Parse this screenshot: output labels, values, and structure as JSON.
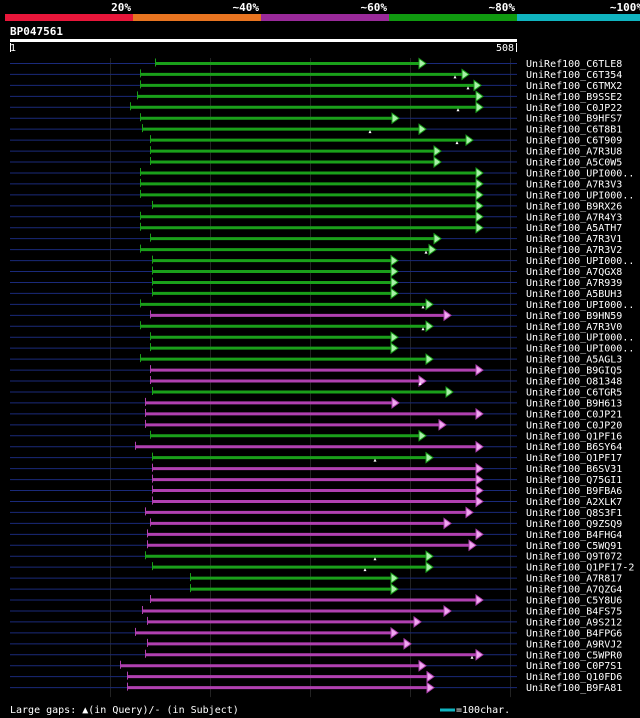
{
  "colors": {
    "background": "#000000",
    "scale_red": "#e8163a",
    "scale_orange": "#e87420",
    "scale_purple": "#9a2a9a",
    "scale_green": "#109a10",
    "scale_cyan": "#10b4c0",
    "hit_green": "#1aa01a",
    "hit_magenta": "#b040b0",
    "arrow_green": "#a8f0a8",
    "arrow_magenta": "#f0a8f0",
    "query_bar": "#ffffff",
    "baseline": "#1a2a7a",
    "grid": "#222222",
    "legend_line": "#10b4c0"
  },
  "scale_legend": [
    {
      "label": "20%",
      "color": "#e8163a"
    },
    {
      "label": "~40%",
      "color": "#e87420"
    },
    {
      "label": "~60%",
      "color": "#9a2a9a"
    },
    {
      "label": "~80%",
      "color": "#109a10"
    },
    {
      "label": "~100%",
      "color": "#10b4c0"
    }
  ],
  "query": {
    "id": "BP047561",
    "start": "1",
    "end": "508"
  },
  "hits": [
    {
      "name": "UniRef100_C6TLE8",
      "color": "green",
      "start": 155,
      "end": 425,
      "gap": null
    },
    {
      "name": "UniRef100_C6T354",
      "color": "green",
      "start": 140,
      "end": 468,
      "gap": 455
    },
    {
      "name": "UniRef100_C6TMX2",
      "color": "green",
      "start": 140,
      "end": 480,
      "gap": 468
    },
    {
      "name": "UniRef100_B9SSE2",
      "color": "green",
      "start": 137,
      "end": 482,
      "gap": null
    },
    {
      "name": "UniRef100_C0JP22",
      "color": "green",
      "start": 130,
      "end": 482,
      "gap": 458
    },
    {
      "name": "UniRef100_B9HFS7",
      "color": "green",
      "start": 140,
      "end": 398,
      "gap": null
    },
    {
      "name": "UniRef100_C6T8B1",
      "color": "green",
      "start": 142,
      "end": 425,
      "gap": 370
    },
    {
      "name": "UniRef100_C6T909",
      "color": "green",
      "start": 150,
      "end": 472,
      "gap": 457
    },
    {
      "name": "UniRef100_A7R3U8",
      "color": "green",
      "start": 150,
      "end": 440,
      "gap": null
    },
    {
      "name": "UniRef100_A5C0W5",
      "color": "green",
      "start": 150,
      "end": 440,
      "gap": null
    },
    {
      "name": "UniRef100_UPI000..",
      "color": "green",
      "start": 140,
      "end": 482,
      "gap": null
    },
    {
      "name": "UniRef100_A7R3V3",
      "color": "green",
      "start": 140,
      "end": 482,
      "gap": null
    },
    {
      "name": "UniRef100_UPI000..",
      "color": "green",
      "start": 140,
      "end": 482,
      "gap": null
    },
    {
      "name": "UniRef100_B9RX26",
      "color": "green",
      "start": 152,
      "end": 482,
      "gap": null
    },
    {
      "name": "UniRef100_A7R4Y3",
      "color": "green",
      "start": 140,
      "end": 482,
      "gap": null
    },
    {
      "name": "UniRef100_A5ATH7",
      "color": "green",
      "start": 140,
      "end": 482,
      "gap": null
    },
    {
      "name": "UniRef100_A7R3V1",
      "color": "green",
      "start": 150,
      "end": 440,
      "gap": null
    },
    {
      "name": "UniRef100_A7R3V2",
      "color": "green",
      "start": 140,
      "end": 435,
      "gap": 426
    },
    {
      "name": "UniRef100_UPI000..",
      "color": "green",
      "start": 152,
      "end": 397,
      "gap": null
    },
    {
      "name": "UniRef100_A7QGX8",
      "color": "green",
      "start": 152,
      "end": 397,
      "gap": null
    },
    {
      "name": "UniRef100_A7R939",
      "color": "green",
      "start": 152,
      "end": 397,
      "gap": null
    },
    {
      "name": "UniRef100_A5BUH3",
      "color": "green",
      "start": 152,
      "end": 397,
      "gap": null
    },
    {
      "name": "UniRef100_UPI000..",
      "color": "green",
      "start": 140,
      "end": 432,
      "gap": 423
    },
    {
      "name": "UniRef100_B9HN59",
      "color": "magenta",
      "start": 150,
      "end": 450,
      "gap": null
    },
    {
      "name": "UniRef100_A7R3V0",
      "color": "green",
      "start": 140,
      "end": 432,
      "gap": 423
    },
    {
      "name": "UniRef100_UPI000..",
      "color": "green",
      "start": 150,
      "end": 397,
      "gap": null
    },
    {
      "name": "UniRef100_UPI000..",
      "color": "green",
      "start": 150,
      "end": 397,
      "gap": null
    },
    {
      "name": "UniRef100_A5AGL3",
      "color": "green",
      "start": 140,
      "end": 432,
      "gap": null
    },
    {
      "name": "UniRef100_B9GIQ5",
      "color": "magenta",
      "start": 150,
      "end": 482,
      "gap": null
    },
    {
      "name": "UniRef100_O81348",
      "color": "magenta",
      "start": 150,
      "end": 425,
      "gap": 420
    },
    {
      "name": "UniRef100_C6TGR5",
      "color": "green",
      "start": 152,
      "end": 452,
      "gap": null
    },
    {
      "name": "UniRef100_B9H613",
      "color": "magenta",
      "start": 145,
      "end": 398,
      "gap": null
    },
    {
      "name": "UniRef100_C0JP21",
      "color": "magenta",
      "start": 145,
      "end": 482,
      "gap": null
    },
    {
      "name": "UniRef100_C0JP20",
      "color": "magenta",
      "start": 145,
      "end": 445,
      "gap": null
    },
    {
      "name": "UniRef100_Q1PF16",
      "color": "green",
      "start": 150,
      "end": 425,
      "gap": null
    },
    {
      "name": "UniRef100_B6SY64",
      "color": "magenta",
      "start": 135,
      "end": 482,
      "gap": null
    },
    {
      "name": "UniRef100_Q1PF17",
      "color": "green",
      "start": 152,
      "end": 432,
      "gap": 375
    },
    {
      "name": "UniRef100_B6SV31",
      "color": "magenta",
      "start": 152,
      "end": 482,
      "gap": null
    },
    {
      "name": "UniRef100_Q75GI1",
      "color": "magenta",
      "start": 152,
      "end": 482,
      "gap": null
    },
    {
      "name": "UniRef100_B9FBA6",
      "color": "magenta",
      "start": 152,
      "end": 482,
      "gap": null
    },
    {
      "name": "UniRef100_A2XLK7",
      "color": "magenta",
      "start": 152,
      "end": 482,
      "gap": null
    },
    {
      "name": "UniRef100_Q8S3F1",
      "color": "magenta",
      "start": 145,
      "end": 472,
      "gap": null
    },
    {
      "name": "UniRef100_Q9ZSQ9",
      "color": "magenta",
      "start": 150,
      "end": 450,
      "gap": null
    },
    {
      "name": "UniRef100_B4FHG4",
      "color": "magenta",
      "start": 147,
      "end": 482,
      "gap": null
    },
    {
      "name": "UniRef100_C5WQ91",
      "color": "magenta",
      "start": 147,
      "end": 475,
      "gap": null
    },
    {
      "name": "UniRef100_Q9T072",
      "color": "green",
      "start": 145,
      "end": 432,
      "gap": 375
    },
    {
      "name": "UniRef100_Q1PF17-2",
      "color": "green",
      "start": 152,
      "end": 432,
      "gap": 365
    },
    {
      "name": "UniRef100_A7R817",
      "color": "green",
      "start": 190,
      "end": 397,
      "gap": null
    },
    {
      "name": "UniRef100_A7QZG4",
      "color": "green",
      "start": 190,
      "end": 397,
      "gap": null
    },
    {
      "name": "UniRef100_C5Y8U6",
      "color": "magenta",
      "start": 150,
      "end": 482,
      "gap": null
    },
    {
      "name": "UniRef100_B4FS75",
      "color": "magenta",
      "start": 142,
      "end": 450,
      "gap": null
    },
    {
      "name": "UniRef100_A9S212",
      "color": "magenta",
      "start": 147,
      "end": 420,
      "gap": null
    },
    {
      "name": "UniRef100_B4FPG6",
      "color": "magenta",
      "start": 135,
      "end": 397,
      "gap": null
    },
    {
      "name": "UniRef100_A9RVJ2",
      "color": "magenta",
      "start": 147,
      "end": 410,
      "gap": null
    },
    {
      "name": "UniRef100_C5WPR0",
      "color": "magenta",
      "start": 145,
      "end": 482,
      "gap": 472
    },
    {
      "name": "UniRef100_C0P7S1",
      "color": "magenta",
      "start": 120,
      "end": 425,
      "gap": null
    },
    {
      "name": "UniRef100_Q10FD6",
      "color": "magenta",
      "start": 127,
      "end": 433,
      "gap": null
    },
    {
      "name": "UniRef100_B9FA81",
      "color": "magenta",
      "start": 127,
      "end": 433,
      "gap": null
    }
  ],
  "footer": {
    "gaps_text": "Large gaps: ▲(in Query)/- (in Subject)",
    "scale_text": "=100char."
  }
}
